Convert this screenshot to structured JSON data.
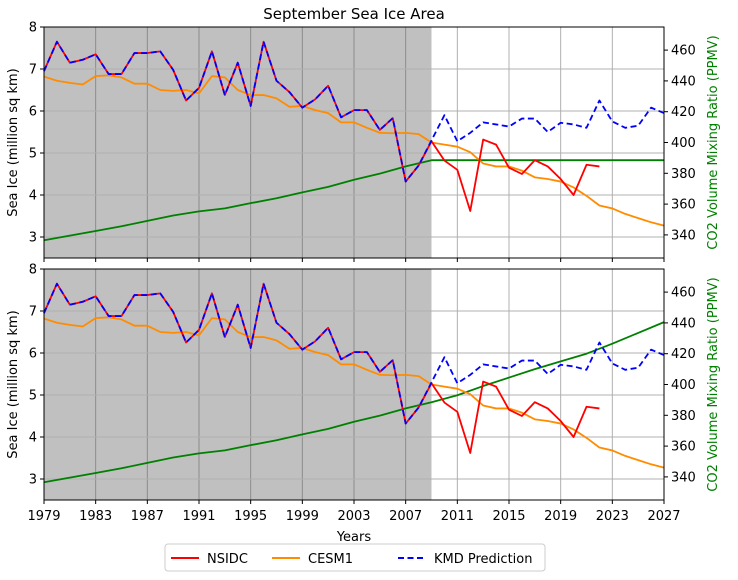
{
  "title": "September Sea Ice Area",
  "legend": {
    "placement": "bottom-center",
    "items": [
      {
        "label": "NSIDC",
        "color": "#ff0000",
        "style": "solid"
      },
      {
        "label": "CESM1",
        "color": "#ff8c00",
        "style": "solid"
      },
      {
        "label": "KMD Prediction",
        "color": "#0000ff",
        "style": "dashed"
      }
    ]
  },
  "chart_data": {
    "type": "line",
    "title": "September Sea Ice Area",
    "xlabel": "Years",
    "xlim": [
      1979,
      2027
    ],
    "xticks": [
      "1979",
      "1983",
      "1987",
      "1991",
      "1995",
      "1999",
      "2003",
      "2007",
      "2011",
      "2015",
      "2019",
      "2023",
      "2027"
    ],
    "ylabel_left": "Sea Ice (million sq km)",
    "ylim_left": [
      2.5,
      8
    ],
    "yticks_left": [
      "3",
      "4",
      "5",
      "6",
      "7",
      "8"
    ],
    "ylabel_right": "CO2 Volume Mixing Ratio (PPMV)",
    "ylim_right": [
      325,
      475
    ],
    "yticks_right": [
      "340",
      "360",
      "380",
      "400",
      "420",
      "440",
      "460"
    ],
    "grid": true,
    "training_shading": {
      "from": 1979,
      "to": 2009,
      "color": "#c0c0c0"
    },
    "years": [
      1979,
      1980,
      1981,
      1982,
      1983,
      1984,
      1985,
      1986,
      1987,
      1988,
      1989,
      1990,
      1991,
      1992,
      1993,
      1994,
      1995,
      1996,
      1997,
      1998,
      1999,
      2000,
      2001,
      2002,
      2003,
      2004,
      2005,
      2006,
      2007,
      2008,
      2009,
      2010,
      2011,
      2012,
      2013,
      2014,
      2015,
      2016,
      2017,
      2018,
      2019,
      2020,
      2021,
      2022,
      2023,
      2024,
      2025,
      2026,
      2027
    ],
    "panels": [
      {
        "name": "top",
        "series": [
          {
            "name": "NSIDC",
            "axis": "left",
            "color": "#ff0000",
            "x": [
              1979,
              1980,
              1981,
              1982,
              1983,
              1984,
              1985,
              1986,
              1987,
              1988,
              1989,
              1990,
              1991,
              1992,
              1993,
              1994,
              1995,
              1996,
              1997,
              1998,
              1999,
              2000,
              2001,
              2002,
              2003,
              2004,
              2005,
              2006,
              2007,
              2008,
              2009,
              2010,
              2011,
              2012,
              2013,
              2014,
              2015,
              2016,
              2017,
              2018,
              2019,
              2020,
              2021,
              2022
            ],
            "y": [
              6.95,
              7.65,
              7.15,
              7.22,
              7.35,
              6.88,
              6.88,
              7.38,
              7.38,
              7.42,
              6.98,
              6.25,
              6.55,
              7.42,
              6.38,
              7.15,
              6.12,
              7.65,
              6.72,
              6.45,
              6.08,
              6.28,
              6.6,
              5.85,
              6.02,
              6.02,
              5.55,
              5.83,
              4.32,
              4.7,
              5.28,
              4.82,
              4.6,
              3.62,
              5.32,
              5.2,
              4.65,
              4.5,
              4.83,
              4.68,
              4.38,
              4.0,
              4.72,
              4.68
            ]
          },
          {
            "name": "CESM1",
            "axis": "left",
            "color": "#ff8c00",
            "x": [
              1979,
              1980,
              1981,
              1982,
              1983,
              1984,
              1985,
              1986,
              1987,
              1988,
              1989,
              1990,
              1991,
              1992,
              1993,
              1994,
              1995,
              1996,
              1997,
              1998,
              1999,
              2000,
              2001,
              2002,
              2003,
              2004,
              2005,
              2006,
              2007,
              2008,
              2009,
              2010,
              2011,
              2012,
              2013,
              2014,
              2015,
              2016,
              2017,
              2018,
              2019,
              2020,
              2021,
              2022,
              2023,
              2024,
              2025,
              2026,
              2027
            ],
            "y": [
              6.82,
              6.72,
              6.67,
              6.63,
              6.83,
              6.85,
              6.8,
              6.65,
              6.65,
              6.5,
              6.48,
              6.5,
              6.42,
              6.83,
              6.8,
              6.5,
              6.38,
              6.38,
              6.3,
              6.1,
              6.12,
              6.02,
              5.95,
              5.73,
              5.73,
              5.6,
              5.48,
              5.47,
              5.48,
              5.45,
              5.25,
              5.2,
              5.15,
              5.02,
              4.75,
              4.68,
              4.68,
              4.58,
              4.42,
              4.38,
              4.32,
              4.18,
              3.98,
              3.75,
              3.68,
              3.55,
              3.45,
              3.35,
              3.27
            ]
          },
          {
            "name": "KMD Prediction",
            "axis": "left",
            "color": "#0000ff",
            "dashed": true,
            "x": [
              1979,
              1980,
              1981,
              1982,
              1983,
              1984,
              1985,
              1986,
              1987,
              1988,
              1989,
              1990,
              1991,
              1992,
              1993,
              1994,
              1995,
              1996,
              1997,
              1998,
              1999,
              2000,
              2001,
              2002,
              2003,
              2004,
              2005,
              2006,
              2007,
              2008,
              2009,
              2010,
              2011,
              2012,
              2013,
              2014,
              2015,
              2016,
              2017,
              2018,
              2019,
              2020,
              2021,
              2022,
              2023,
              2024,
              2025,
              2026,
              2027
            ],
            "y": [
              6.95,
              7.65,
              7.15,
              7.22,
              7.35,
              6.88,
              6.88,
              7.38,
              7.38,
              7.42,
              6.98,
              6.25,
              6.55,
              7.42,
              6.38,
              7.15,
              6.12,
              7.65,
              6.72,
              6.45,
              6.08,
              6.28,
              6.6,
              5.85,
              6.02,
              6.02,
              5.55,
              5.83,
              4.32,
              4.7,
              5.3,
              5.9,
              5.28,
              5.48,
              5.73,
              5.68,
              5.63,
              5.82,
              5.82,
              5.5,
              5.72,
              5.68,
              5.6,
              6.25,
              5.75,
              5.6,
              5.65,
              6.08,
              5.95
            ]
          },
          {
            "name": "CO2",
            "axis": "right",
            "color": "#008000",
            "x": [
              1979,
              1981,
              1983,
              1985,
              1987,
              1989,
              1991,
              1993,
              1995,
              1997,
              1999,
              2001,
              2003,
              2005,
              2007,
              2009,
              2011,
              2013,
              2015,
              2017,
              2019,
              2021,
              2023,
              2025,
              2027
            ],
            "y": [
              336.5,
              339.5,
              342.5,
              345.6,
              349.1,
              352.6,
              355.3,
              357.2,
              360.6,
              363.8,
              367.6,
              371.2,
              375.8,
              379.8,
              384.5,
              388.5,
              388.5,
              388.5,
              388.5,
              388.5,
              388.5,
              388.5,
              388.5,
              388.5,
              388.5
            ]
          }
        ]
      },
      {
        "name": "bottom",
        "series": [
          {
            "name": "NSIDC",
            "axis": "left",
            "color": "#ff0000",
            "x": [
              1979,
              1980,
              1981,
              1982,
              1983,
              1984,
              1985,
              1986,
              1987,
              1988,
              1989,
              1990,
              1991,
              1992,
              1993,
              1994,
              1995,
              1996,
              1997,
              1998,
              1999,
              2000,
              2001,
              2002,
              2003,
              2004,
              2005,
              2006,
              2007,
              2008,
              2009,
              2010,
              2011,
              2012,
              2013,
              2014,
              2015,
              2016,
              2017,
              2018,
              2019,
              2020,
              2021,
              2022
            ],
            "y": [
              6.95,
              7.65,
              7.15,
              7.22,
              7.35,
              6.88,
              6.88,
              7.38,
              7.38,
              7.42,
              6.98,
              6.25,
              6.55,
              7.42,
              6.38,
              7.15,
              6.12,
              7.65,
              6.72,
              6.45,
              6.08,
              6.28,
              6.6,
              5.85,
              6.02,
              6.02,
              5.55,
              5.83,
              4.32,
              4.7,
              5.28,
              4.82,
              4.6,
              3.62,
              5.32,
              5.2,
              4.65,
              4.5,
              4.83,
              4.68,
              4.38,
              4.0,
              4.72,
              4.68
            ]
          },
          {
            "name": "CESM1",
            "axis": "left",
            "color": "#ff8c00",
            "x": [
              1979,
              1980,
              1981,
              1982,
              1983,
              1984,
              1985,
              1986,
              1987,
              1988,
              1989,
              1990,
              1991,
              1992,
              1993,
              1994,
              1995,
              1996,
              1997,
              1998,
              1999,
              2000,
              2001,
              2002,
              2003,
              2004,
              2005,
              2006,
              2007,
              2008,
              2009,
              2010,
              2011,
              2012,
              2013,
              2014,
              2015,
              2016,
              2017,
              2018,
              2019,
              2020,
              2021,
              2022,
              2023,
              2024,
              2025,
              2026,
              2027
            ],
            "y": [
              6.82,
              6.72,
              6.67,
              6.63,
              6.83,
              6.85,
              6.8,
              6.65,
              6.65,
              6.5,
              6.48,
              6.5,
              6.42,
              6.83,
              6.8,
              6.5,
              6.38,
              6.38,
              6.3,
              6.1,
              6.12,
              6.02,
              5.95,
              5.73,
              5.73,
              5.6,
              5.48,
              5.47,
              5.48,
              5.45,
              5.25,
              5.2,
              5.15,
              5.02,
              4.75,
              4.68,
              4.68,
              4.58,
              4.42,
              4.38,
              4.32,
              4.18,
              3.98,
              3.75,
              3.68,
              3.55,
              3.45,
              3.35,
              3.27
            ]
          },
          {
            "name": "KMD Prediction",
            "axis": "left",
            "color": "#0000ff",
            "dashed": true,
            "x": [
              1979,
              1980,
              1981,
              1982,
              1983,
              1984,
              1985,
              1986,
              1987,
              1988,
              1989,
              1990,
              1991,
              1992,
              1993,
              1994,
              1995,
              1996,
              1997,
              1998,
              1999,
              2000,
              2001,
              2002,
              2003,
              2004,
              2005,
              2006,
              2007,
              2008,
              2009,
              2010,
              2011,
              2012,
              2013,
              2014,
              2015,
              2016,
              2017,
              2018,
              2019,
              2020,
              2021,
              2022,
              2023,
              2024,
              2025,
              2026,
              2027
            ],
            "y": [
              6.95,
              7.65,
              7.15,
              7.22,
              7.35,
              6.88,
              6.88,
              7.38,
              7.38,
              7.42,
              6.98,
              6.25,
              6.55,
              7.42,
              6.38,
              7.15,
              6.12,
              7.65,
              6.72,
              6.45,
              6.08,
              6.28,
              6.6,
              5.85,
              6.02,
              6.02,
              5.55,
              5.83,
              4.32,
              4.7,
              5.3,
              5.9,
              5.28,
              5.48,
              5.73,
              5.68,
              5.63,
              5.82,
              5.82,
              5.5,
              5.72,
              5.68,
              5.6,
              6.25,
              5.75,
              5.6,
              5.65,
              6.08,
              5.95
            ]
          },
          {
            "name": "CO2",
            "axis": "right",
            "color": "#008000",
            "x": [
              1979,
              1981,
              1983,
              1985,
              1987,
              1989,
              1991,
              1993,
              1995,
              1997,
              1999,
              2001,
              2003,
              2005,
              2007,
              2009,
              2011,
              2013,
              2015,
              2017,
              2019,
              2021,
              2023,
              2025,
              2027
            ],
            "y": [
              336.5,
              339.5,
              342.5,
              345.6,
              349.1,
              352.6,
              355.3,
              357.2,
              360.6,
              363.8,
              367.6,
              371.2,
              375.8,
              379.8,
              384.5,
              388.5,
              393,
              399,
              404.5,
              410,
              415,
              420,
              426.5,
              433.5,
              440.5
            ]
          }
        ]
      }
    ]
  }
}
